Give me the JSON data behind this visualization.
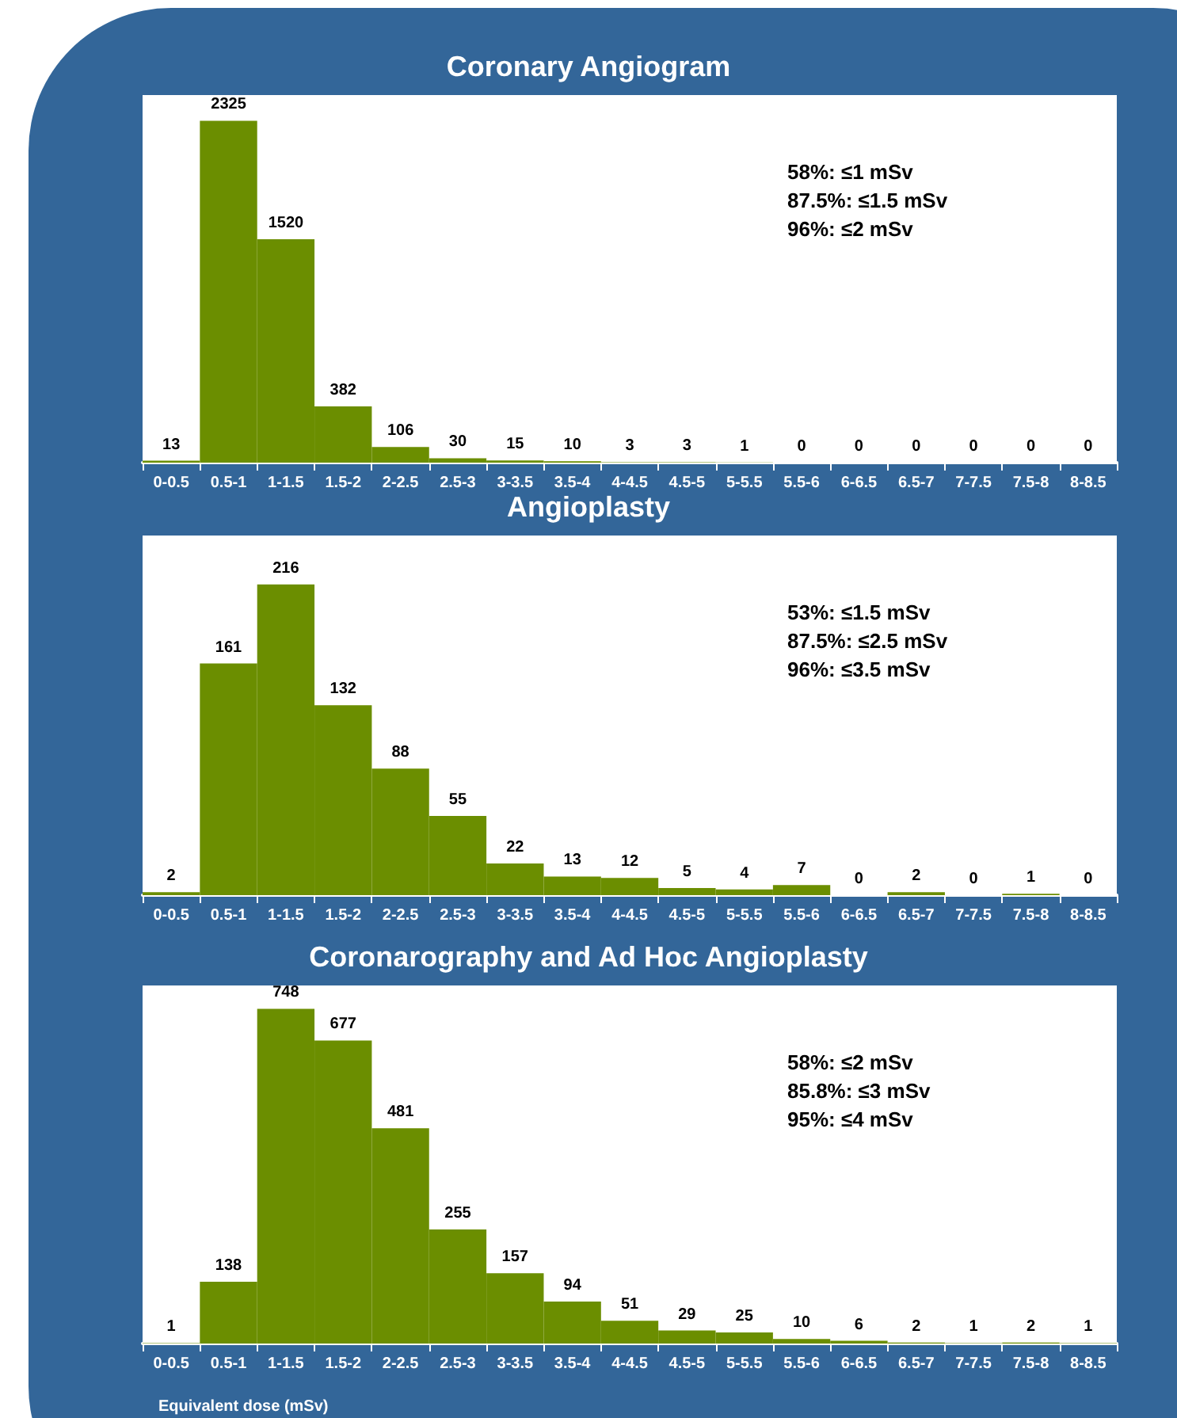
{
  "chart_data": [
    {
      "type": "bar",
      "title": "Coronary Angiogram",
      "categories": [
        "0-0.5",
        "0.5-1",
        "1-1.5",
        "1.5-2",
        "2-2.5",
        "2.5-3",
        "3-3.5",
        "3.5-4",
        "4-4.5",
        "4.5-5",
        "5-5.5",
        "5.5-6",
        "6-6.5",
        "6.5-7",
        "7-7.5",
        "7.5-8",
        "8-8.5"
      ],
      "values": [
        13,
        2325,
        1520,
        382,
        106,
        30,
        15,
        10,
        3,
        3,
        1,
        0,
        0,
        0,
        0,
        0,
        0
      ],
      "color": "#6b8e00",
      "data_labels": true,
      "annotations": [
        "58%: ≤1 mSv",
        "87.5%: ≤1.5 mSv",
        "96%: ≤2 mSv"
      ]
    },
    {
      "type": "bar",
      "title": "Angioplasty",
      "categories": [
        "0-0.5",
        "0.5-1",
        "1-1.5",
        "1.5-2",
        "2-2.5",
        "2.5-3",
        "3-3.5",
        "3.5-4",
        "4-4.5",
        "4.5-5",
        "5-5.5",
        "5.5-6",
        "6-6.5",
        "6.5-7",
        "7-7.5",
        "7.5-8",
        "8-8.5"
      ],
      "values": [
        2,
        161,
        216,
        132,
        88,
        55,
        22,
        13,
        12,
        5,
        4,
        7,
        0,
        2,
        0,
        1,
        0
      ],
      "color": "#6b8e00",
      "data_labels": true,
      "annotations": [
        "53%: ≤1.5 mSv",
        "87.5%: ≤2.5 mSv",
        "96%: ≤3.5 mSv"
      ]
    },
    {
      "type": "bar",
      "title": "Coronarography and Ad Hoc Angioplasty",
      "xlabel": "Equivalent dose (mSv)",
      "categories": [
        "0-0.5",
        "0.5-1",
        "1-1.5",
        "1.5-2",
        "2-2.5",
        "2.5-3",
        "3-3.5",
        "3.5-4",
        "4-4.5",
        "4.5-5",
        "5-5.5",
        "5.5-6",
        "6-6.5",
        "6.5-7",
        "7-7.5",
        "7.5-8",
        "8-8.5"
      ],
      "values": [
        1,
        138,
        748,
        677,
        481,
        255,
        157,
        94,
        51,
        29,
        25,
        10,
        6,
        2,
        1,
        2,
        1
      ],
      "color": "#6b8e00",
      "data_labels": true,
      "annotations": [
        "58%: ≤2 mSv",
        "85.8%: ≤3 mSv",
        "95%: ≤4 mSv"
      ]
    }
  ]
}
